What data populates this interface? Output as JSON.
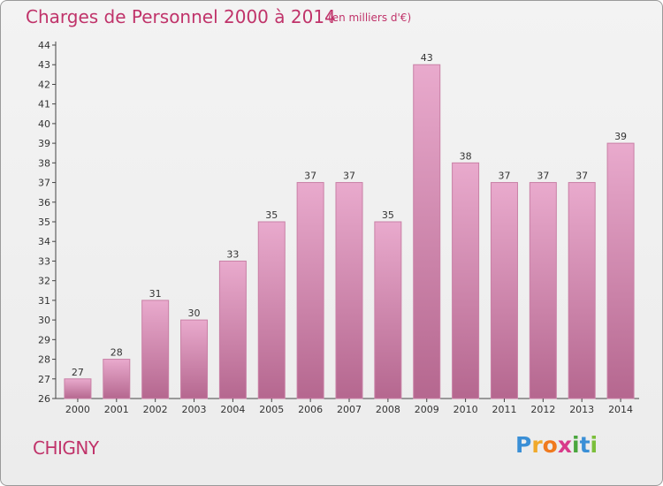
{
  "chart_data": {
    "type": "bar",
    "title": "Charges de Personnel 2000 à 2014",
    "subtitle": "(en milliers d'€)",
    "categories": [
      "2000",
      "2001",
      "2002",
      "2003",
      "2004",
      "2005",
      "2006",
      "2007",
      "2008",
      "2009",
      "2010",
      "2011",
      "2012",
      "2013",
      "2014"
    ],
    "values": [
      27,
      28,
      31,
      30,
      33,
      35,
      37,
      37,
      35,
      43,
      38,
      37,
      37,
      37,
      39
    ],
    "ylim": [
      26,
      44
    ],
    "yticks": [
      26,
      27,
      28,
      29,
      30,
      31,
      32,
      33,
      34,
      35,
      36,
      37,
      38,
      39,
      40,
      41,
      42,
      43,
      44
    ],
    "grid": false,
    "legend": "none",
    "colors": {
      "bar_top": "#e9aacd",
      "bar_bottom": "#b5678f",
      "bar_stroke": "#c980a6",
      "text_accent": "#c0336a"
    }
  },
  "footer": {
    "town": "CHIGNY",
    "logo_letters": [
      "P",
      "r",
      "o",
      "x",
      "i",
      "t",
      "i"
    ],
    "logo_colors": [
      "#3a8fd6",
      "#f0a92b",
      "#f07a1e",
      "#d83a8a",
      "#4aa63d",
      "#3a8fd6",
      "#7bbf3a"
    ]
  }
}
